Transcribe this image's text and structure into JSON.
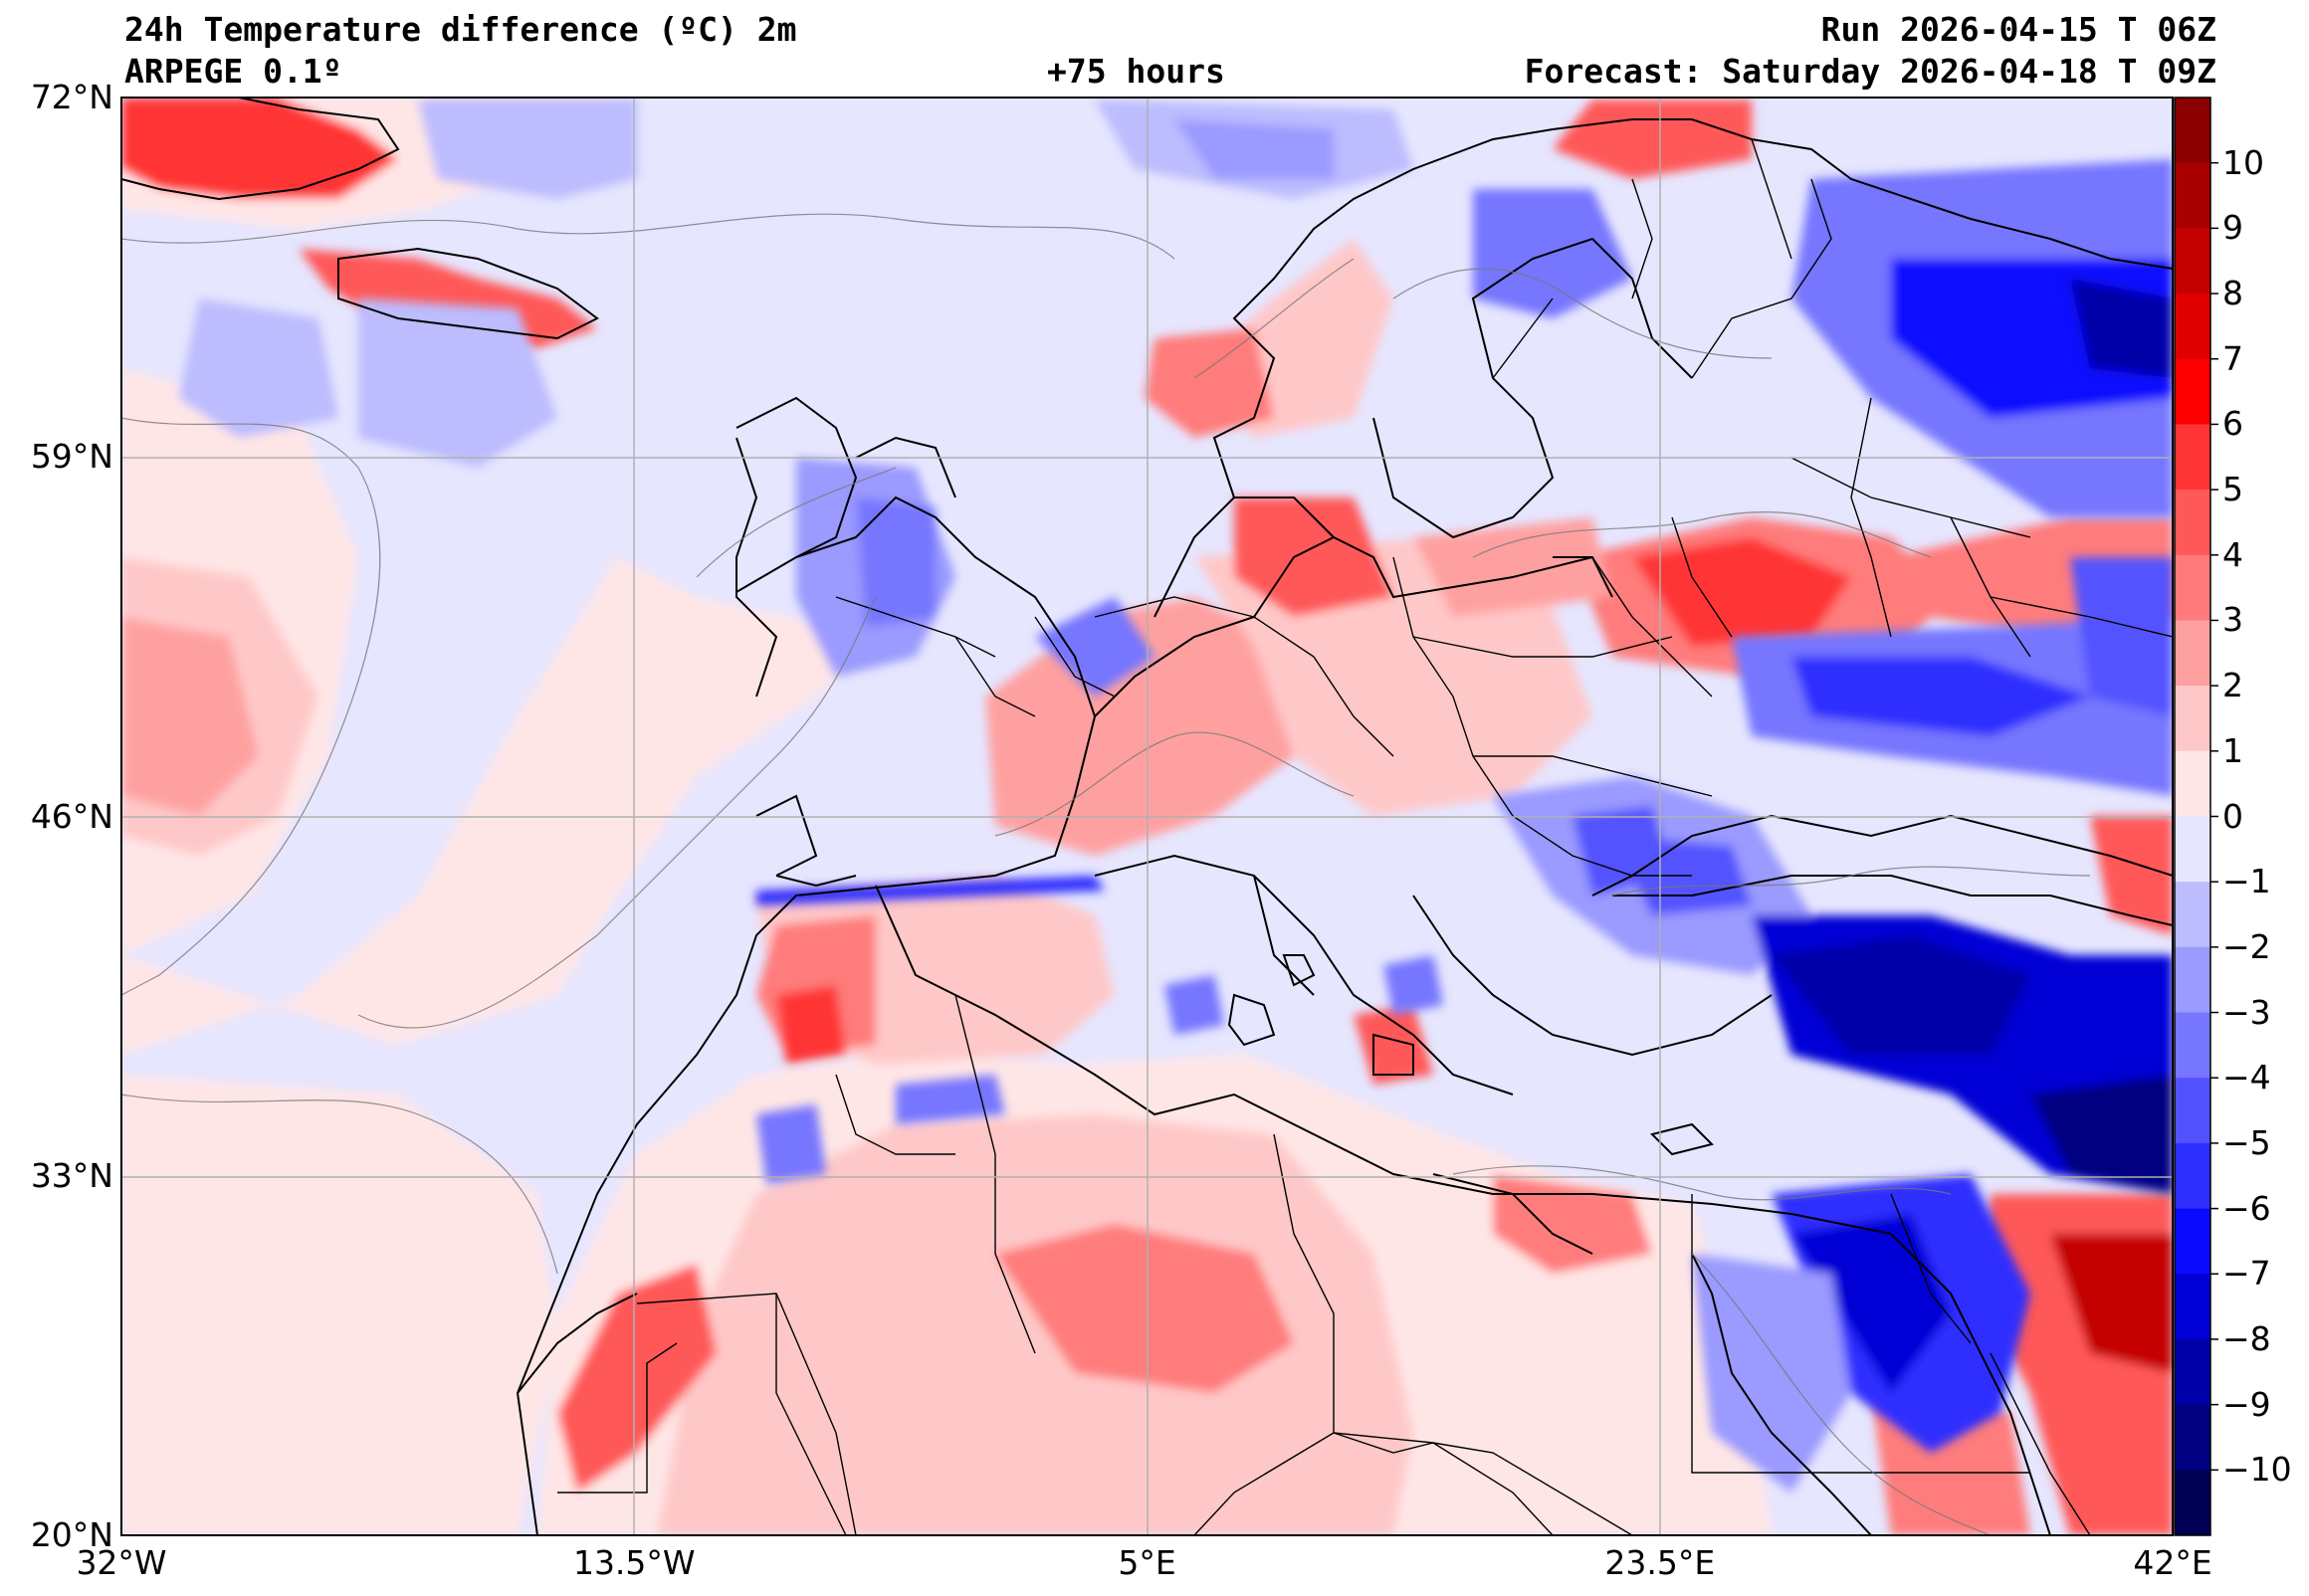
{
  "header": {
    "title": "24h Temperature difference (ºC) 2m",
    "model": "ARPEGE 0.1º",
    "lead_time": "+75 hours",
    "run": "Run 2026-04-15 T 06Z",
    "forecast": "Forecast: Saturday 2026-04-18 T 09Z"
  },
  "axes": {
    "lat_labels": [
      "72°N",
      "59°N",
      "46°N",
      "33°N",
      "20°N"
    ],
    "lon_labels": [
      "32°W",
      "13.5°W",
      "5°E",
      "23.5°E",
      "42°E"
    ],
    "lat_values": [
      72,
      59,
      46,
      33,
      20
    ],
    "lon_values": [
      -32,
      -13.5,
      5,
      23.5,
      42
    ]
  },
  "colorbar": {
    "min": -11,
    "max": 11,
    "tick_labels": [
      "10",
      "9",
      "8",
      "7",
      "6",
      "5",
      "4",
      "3",
      "2",
      "1",
      "0",
      "−1",
      "−2",
      "−3",
      "−4",
      "−5",
      "−6",
      "−7",
      "−8",
      "−9",
      "−10"
    ],
    "tick_values": [
      10,
      9,
      8,
      7,
      6,
      5,
      4,
      3,
      2,
      1,
      0,
      -1,
      -2,
      -3,
      -4,
      -5,
      -6,
      -7,
      -8,
      -9,
      -10
    ],
    "level_colors": [
      "#8b0000",
      "#a80000",
      "#c40000",
      "#e00000",
      "#ff0000",
      "#ff3535",
      "#ff5858",
      "#ff7b7b",
      "#ffa0a0",
      "#ffc8c8",
      "#ffe6e6",
      "#e6e6ff",
      "#bcbcff",
      "#9a9aff",
      "#7676ff",
      "#5252ff",
      "#2e2eff",
      "#0a0aff",
      "#0000d6",
      "#0000a8",
      "#000080",
      "#000055"
    ]
  }
}
